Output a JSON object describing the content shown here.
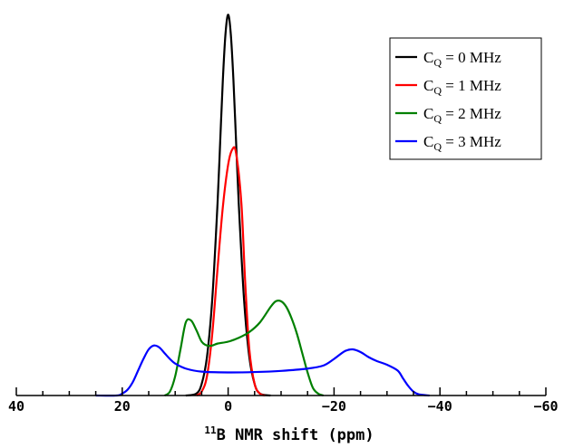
{
  "chart_data": {
    "type": "line",
    "title": "",
    "xlabel": {
      "sup": "11",
      "text": "B NMR shift (ppm)"
    },
    "ylabel": "",
    "xlim": [
      40,
      -60
    ],
    "xticks": [
      40,
      20,
      0,
      -20,
      -40,
      -60
    ],
    "xtick_labels": [
      "40",
      "20",
      "0",
      "−20",
      "−40",
      "−60"
    ],
    "x_minor_step": 5,
    "ylim": [
      0,
      1.0
    ],
    "grid": false,
    "y_axis_visible": false,
    "legend_position": "top-right",
    "series": [
      {
        "name": {
          "pre": "C",
          "sub": "Q",
          "post": " = 0 MHz"
        },
        "color": "#000000",
        "x": [
          8,
          6,
          5,
          4,
          3,
          2,
          1.5,
          1,
          0.5,
          0,
          -0.5,
          -1,
          -1.5,
          -2,
          -3,
          -4,
          -5,
          -6,
          -8
        ],
        "y": [
          0,
          0.005,
          0.03,
          0.1,
          0.25,
          0.5,
          0.66,
          0.82,
          0.94,
          0.99,
          0.94,
          0.82,
          0.66,
          0.5,
          0.25,
          0.1,
          0.03,
          0.005,
          0
        ]
      },
      {
        "name": {
          "pre": "C",
          "sub": "Q",
          "post": " = 1 MHz"
        },
        "color": "#ff0000",
        "x": [
          6,
          5,
          4,
          3,
          2,
          1,
          0,
          -0.8,
          -1.5,
          -2.5,
          -3.2,
          -4,
          -5,
          -6,
          -7
        ],
        "y": [
          0,
          0.01,
          0.05,
          0.16,
          0.33,
          0.49,
          0.6,
          0.64,
          0.63,
          0.5,
          0.3,
          0.12,
          0.03,
          0.005,
          0
        ]
      },
      {
        "name": {
          "pre": "C",
          "sub": "Q",
          "post": " = 2 MHz"
        },
        "color": "#008000",
        "x": [
          12,
          11,
          10,
          9,
          8,
          7,
          6,
          5,
          4,
          3,
          2,
          0,
          -2,
          -4,
          -6,
          -8,
          -9,
          -10,
          -11,
          -12,
          -13,
          -14,
          -15,
          -16,
          -17,
          -18
        ],
        "y": [
          0,
          0.01,
          0.05,
          0.12,
          0.19,
          0.195,
          0.17,
          0.14,
          0.13,
          0.13,
          0.135,
          0.14,
          0.15,
          0.165,
          0.19,
          0.23,
          0.245,
          0.245,
          0.23,
          0.2,
          0.16,
          0.11,
          0.06,
          0.02,
          0.005,
          0
        ]
      },
      {
        "name": {
          "pre": "C",
          "sub": "Q",
          "post": " = 3 MHz"
        },
        "color": "#0000ff",
        "x": [
          25,
          21,
          20,
          19,
          18,
          17,
          16,
          15,
          14,
          13,
          12,
          11,
          10,
          8,
          5,
          0,
          -5,
          -10,
          -15,
          -18,
          -20,
          -22,
          -23.5,
          -25,
          -26.5,
          -28,
          -30,
          -32,
          -33,
          -34,
          -35,
          -36,
          -38
        ],
        "y": [
          0,
          0,
          0.005,
          0.015,
          0.035,
          0.065,
          0.095,
          0.12,
          0.13,
          0.125,
          0.11,
          0.095,
          0.083,
          0.07,
          0.062,
          0.06,
          0.061,
          0.064,
          0.07,
          0.078,
          0.095,
          0.115,
          0.12,
          0.113,
          0.1,
          0.09,
          0.08,
          0.065,
          0.045,
          0.025,
          0.01,
          0.003,
          0
        ]
      }
    ]
  }
}
